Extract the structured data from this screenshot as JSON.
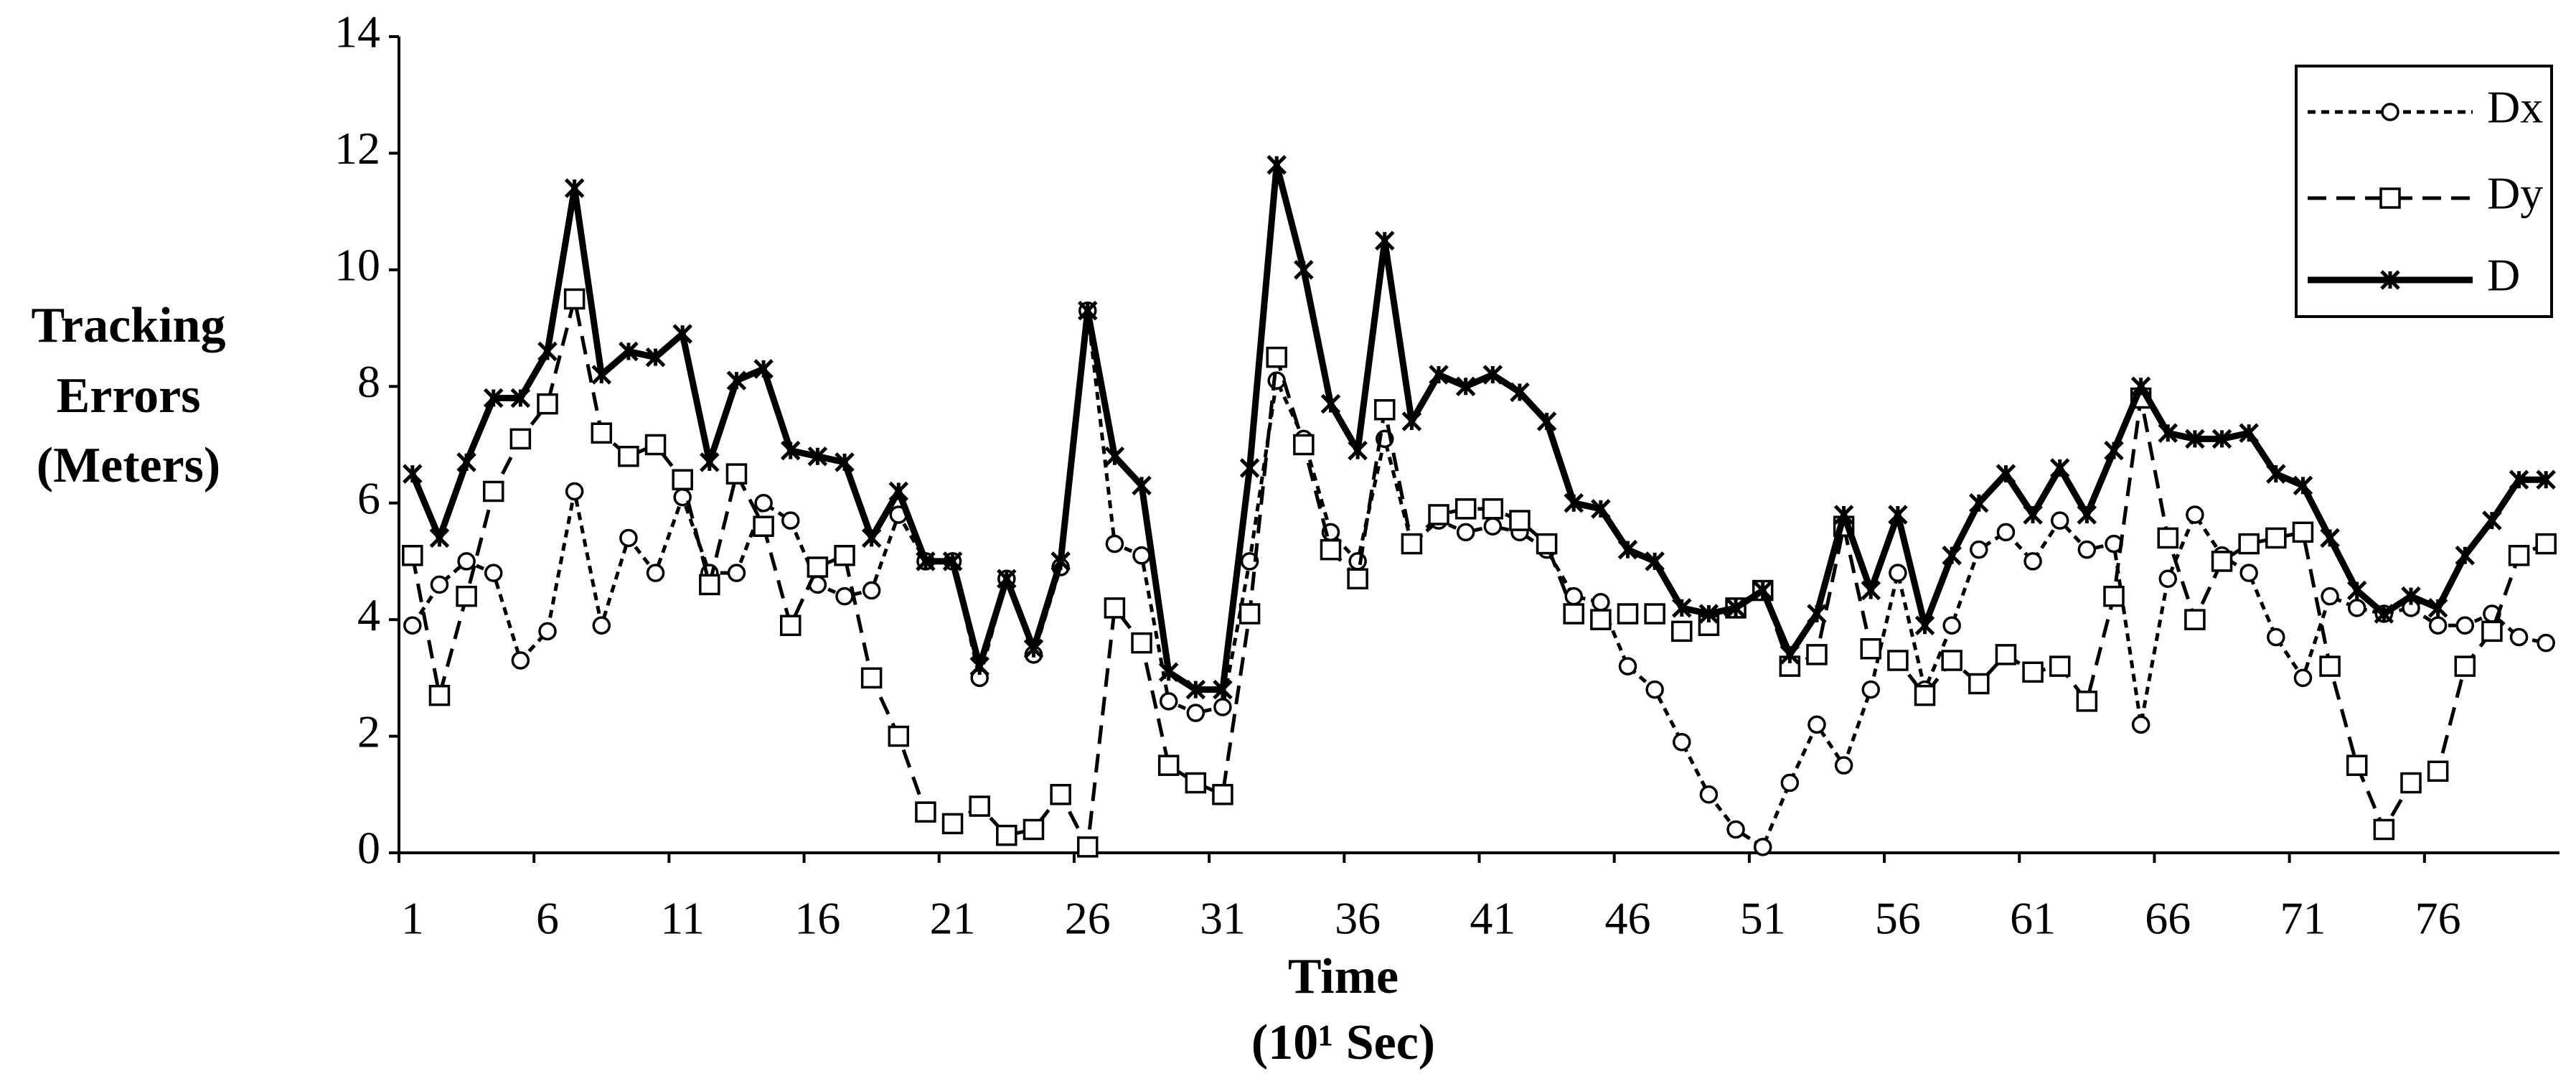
{
  "chart_data": {
    "type": "line",
    "ylabel": [
      "Tracking",
      "Errors",
      "(Meters)"
    ],
    "xlabel": [
      "Time",
      "(10¹ Sec)"
    ],
    "categories": [
      "1",
      null,
      null,
      null,
      null,
      "6",
      null,
      null,
      null,
      null,
      "11",
      null,
      null,
      null,
      null,
      "16",
      null,
      null,
      null,
      null,
      "21",
      null,
      null,
      null,
      null,
      "26",
      null,
      null,
      null,
      null,
      "31",
      null,
      null,
      null,
      null,
      "36",
      null,
      null,
      null,
      null,
      "41",
      null,
      null,
      null,
      null,
      "46",
      null,
      null,
      null,
      null,
      "51",
      null,
      null,
      null,
      null,
      "56",
      null,
      null,
      null,
      null,
      "61",
      null,
      null,
      null,
      null,
      "66",
      null,
      null,
      null,
      null,
      "71",
      null,
      null,
      null,
      null,
      "76",
      null,
      null,
      null,
      null
    ],
    "ylim": [
      0,
      14
    ],
    "yticks": [
      0,
      2,
      4,
      6,
      8,
      10,
      12,
      14
    ],
    "legend": "upper right",
    "series": [
      {
        "name": "Dx",
        "color": "#000000",
        "marker": "circle",
        "dash": "short",
        "values": [
          3.9,
          4.6,
          5.0,
          4.8,
          3.3,
          3.8,
          6.2,
          3.9,
          5.4,
          4.8,
          6.1,
          4.8,
          4.8,
          6.0,
          5.7,
          4.6,
          4.4,
          4.5,
          5.8,
          5.0,
          5.0,
          3.0,
          4.7,
          3.4,
          4.9,
          9.3,
          5.3,
          5.1,
          2.6,
          2.4,
          2.5,
          5.0,
          8.1,
          7.1,
          5.5,
          5.0,
          7.1,
          5.3,
          5.7,
          5.5,
          5.6,
          5.5,
          5.2,
          4.4,
          4.3,
          3.2,
          2.8,
          1.9,
          1.0,
          0.4,
          0.1,
          1.2,
          2.2,
          1.5,
          2.8,
          4.8,
          2.8,
          3.9,
          5.2,
          5.5,
          5.0,
          5.7,
          5.2,
          5.3,
          2.2,
          4.7,
          5.8,
          5.1,
          4.8,
          3.7,
          3.0,
          4.4,
          4.2,
          4.1,
          4.2,
          3.9,
          3.9,
          4.1,
          3.7,
          3.6
        ]
      },
      {
        "name": "Dy",
        "color": "#000000",
        "marker": "square",
        "dash": "long",
        "values": [
          5.1,
          2.7,
          4.4,
          6.2,
          7.1,
          7.7,
          9.5,
          7.2,
          6.8,
          7.0,
          6.4,
          4.6,
          6.5,
          5.6,
          3.9,
          4.9,
          5.1,
          3.0,
          2.0,
          0.7,
          0.5,
          0.8,
          0.3,
          0.4,
          1.0,
          0.1,
          4.2,
          3.6,
          1.5,
          1.2,
          1.0,
          4.1,
          8.5,
          7.0,
          5.2,
          4.7,
          7.6,
          5.3,
          5.8,
          5.9,
          5.9,
          5.7,
          5.3,
          4.1,
          4.0,
          4.1,
          4.1,
          3.8,
          3.9,
          4.2,
          4.5,
          3.2,
          3.4,
          5.6,
          3.5,
          3.3,
          2.7,
          3.3,
          2.9,
          3.4,
          3.1,
          3.2,
          2.6,
          4.4,
          7.8,
          5.4,
          4.0,
          5.0,
          5.3,
          5.4,
          5.5,
          3.2,
          1.5,
          0.4,
          1.2,
          1.4,
          3.2,
          3.8,
          5.1,
          5.3
        ]
      },
      {
        "name": "D",
        "color": "#000000",
        "marker": "star",
        "dash": "solid",
        "values": [
          6.5,
          5.4,
          6.7,
          7.8,
          7.8,
          8.6,
          11.4,
          8.2,
          8.6,
          8.5,
          8.9,
          6.7,
          8.1,
          8.3,
          6.9,
          6.8,
          6.7,
          5.4,
          6.2,
          5.0,
          5.0,
          3.2,
          4.7,
          3.5,
          5.0,
          9.3,
          6.8,
          6.3,
          3.1,
          2.8,
          2.8,
          6.6,
          11.8,
          10.0,
          7.7,
          6.9,
          10.5,
          7.4,
          8.2,
          8.0,
          8.2,
          7.9,
          7.4,
          6.0,
          5.9,
          5.2,
          5.0,
          4.2,
          4.1,
          4.2,
          4.5,
          3.4,
          4.1,
          5.8,
          4.5,
          5.8,
          3.9,
          5.1,
          6.0,
          6.5,
          5.8,
          6.6,
          5.8,
          6.9,
          8.0,
          7.2,
          7.1,
          7.1,
          7.2,
          6.5,
          6.3,
          5.4,
          4.5,
          4.1,
          4.4,
          4.2,
          5.1,
          5.7,
          6.4,
          6.4
        ]
      }
    ]
  }
}
